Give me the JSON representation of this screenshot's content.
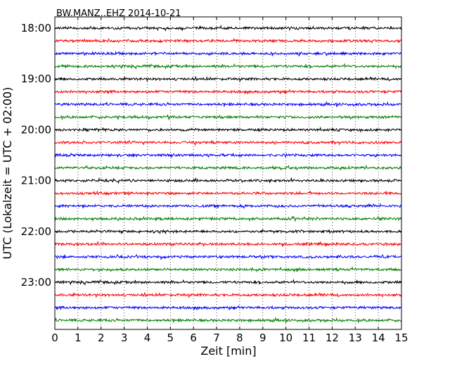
{
  "chart_data": {
    "type": "line",
    "title": "BW.MANZ..EHZ 2014-10-21",
    "xlabel": "Zeit  [min]",
    "ylabel": "UTC (Lokalzeit = UTC + 02:00)",
    "xlim": [
      0,
      15
    ],
    "x_ticks": [
      "0",
      "1",
      "2",
      "3",
      "4",
      "5",
      "6",
      "7",
      "8",
      "9",
      "10",
      "11",
      "12",
      "13",
      "14",
      "15"
    ],
    "y_ticks": [
      "18:00",
      "19:00",
      "20:00",
      "21:00",
      "22:00",
      "23:00"
    ],
    "grid": "vertical dotted lines at each minute",
    "trace_colors": [
      "#000000",
      "#ff0000",
      "#0000ff",
      "#007f00"
    ],
    "traces": [
      {
        "start": "18:00"
      },
      {
        "start": "18:15"
      },
      {
        "start": "18:30"
      },
      {
        "start": "18:45"
      },
      {
        "start": "19:00"
      },
      {
        "start": "19:15"
      },
      {
        "start": "19:30"
      },
      {
        "start": "19:45"
      },
      {
        "start": "20:00"
      },
      {
        "start": "20:15"
      },
      {
        "start": "20:30"
      },
      {
        "start": "20:45"
      },
      {
        "start": "21:00"
      },
      {
        "start": "21:15"
      },
      {
        "start": "21:30"
      },
      {
        "start": "21:45"
      },
      {
        "start": "22:00"
      },
      {
        "start": "22:15"
      },
      {
        "start": "22:30"
      },
      {
        "start": "22:45"
      },
      {
        "start": "23:00"
      },
      {
        "start": "23:15"
      },
      {
        "start": "23:30"
      },
      {
        "start": "23:45"
      }
    ]
  }
}
